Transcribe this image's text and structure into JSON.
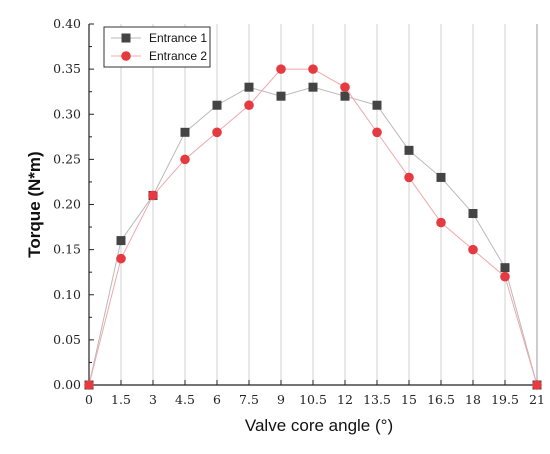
{
  "chart_data": {
    "type": "line",
    "title": "",
    "xlabel": "Valve core angle (°)",
    "ylabel": "Torque  (N*m)",
    "x": [
      0,
      1.5,
      3,
      4.5,
      6,
      7.5,
      9,
      10.5,
      12,
      13.5,
      15,
      16.5,
      18,
      19.5,
      21
    ],
    "x_tick_labels": [
      "0",
      "1.5",
      "3",
      "4.5",
      "6",
      "7.5",
      "9",
      "10.5",
      "12",
      "13.5",
      "15",
      "16.5",
      "18",
      "19.5",
      "21"
    ],
    "y_tick_labels": [
      "0.00",
      "0.05",
      "0.10",
      "0.15",
      "0.20",
      "0.25",
      "0.30",
      "0.35",
      "0.40"
    ],
    "xlim": [
      0,
      21
    ],
    "ylim": [
      0,
      0.4
    ],
    "x_grid": true,
    "y_grid": false,
    "legend_position": "top-left",
    "series": [
      {
        "name": "Entrance 1",
        "marker": "square",
        "color": "#444444",
        "line_color": "#b9b9b9",
        "values": [
          0,
          0.16,
          0.21,
          0.28,
          0.31,
          0.33,
          0.32,
          0.33,
          0.32,
          0.31,
          0.26,
          0.23,
          0.19,
          0.13,
          0
        ]
      },
      {
        "name": "Entrance 2",
        "marker": "circle",
        "color": "#e53a40",
        "line_color": "#f0a8ab",
        "values": [
          0,
          0.14,
          0.21,
          0.25,
          0.28,
          0.31,
          0.35,
          0.35,
          0.33,
          0.28,
          0.23,
          0.18,
          0.15,
          0.12,
          0
        ]
      }
    ]
  }
}
